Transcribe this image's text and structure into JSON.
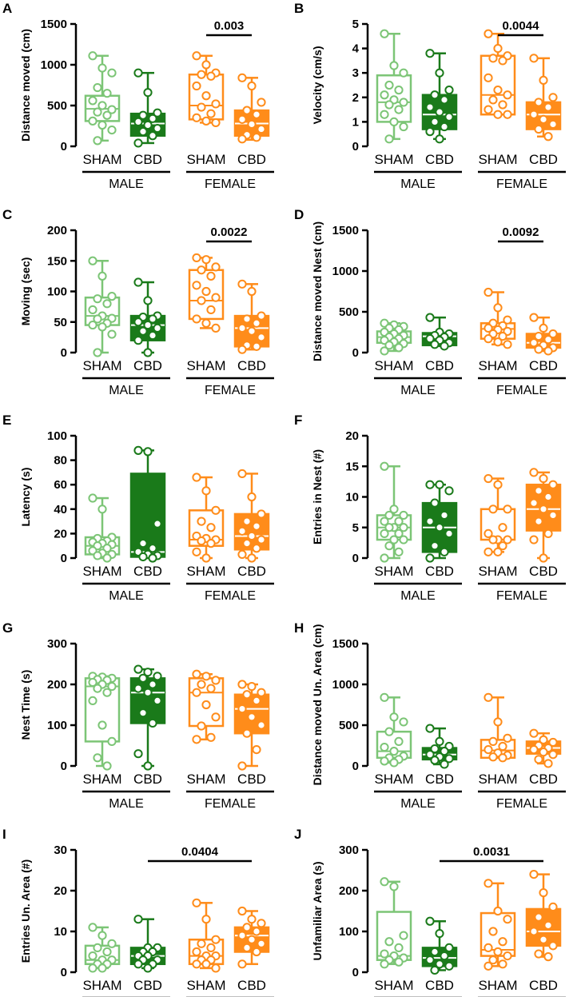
{
  "colors": {
    "sham_male": "#7cc576",
    "cbd_male": "#1a7a1a",
    "female": "#ff8c1a"
  },
  "groups": [
    "SHAM",
    "CBD",
    "SHAM",
    "CBD"
  ],
  "sex_labels": [
    "MALE",
    "FEMALE"
  ],
  "chart_data": [
    {
      "type": "box",
      "letter": "A",
      "ylabel": "Distance moved (cm)",
      "ylim": [
        0,
        1500
      ],
      "ticks": [
        0,
        500,
        1000,
        1500
      ],
      "boxes": [
        {
          "min": 70,
          "q1": 310,
          "med": 460,
          "q3": 620,
          "max": 1110
        },
        {
          "min": 40,
          "q1": 130,
          "med": 280,
          "q3": 400,
          "max": 900
        },
        {
          "min": 290,
          "q1": 330,
          "med": 500,
          "q3": 880,
          "max": 1110
        },
        {
          "min": 80,
          "q1": 130,
          "med": 280,
          "q3": 440,
          "max": 840
        }
      ],
      "points": [
        [
          1110,
          960,
          900,
          720,
          650,
          560,
          500,
          450,
          420,
          380,
          310,
          260,
          200,
          70
        ],
        [
          900,
          660,
          410,
          380,
          340,
          300,
          260,
          220,
          180,
          130,
          40
        ],
        [
          1110,
          1000,
          900,
          880,
          860,
          740,
          620,
          520,
          480,
          400,
          350,
          310,
          290
        ],
        [
          840,
          740,
          540,
          440,
          390,
          330,
          270,
          210,
          140,
          110,
          90
        ]
      ],
      "sig": {
        "label": "0.003",
        "from": 2,
        "to": 3
      }
    },
    {
      "type": "box",
      "letter": "B",
      "ylabel": "Velocity (cm/s)",
      "ylim": [
        0,
        5
      ],
      "ticks": [
        0,
        1,
        2,
        3,
        4,
        5
      ],
      "boxes": [
        {
          "min": 0.3,
          "q1": 1.0,
          "med": 1.8,
          "q3": 2.9,
          "max": 4.6
        },
        {
          "min": 0.3,
          "q1": 0.7,
          "med": 1.3,
          "q3": 2.1,
          "max": 3.8
        },
        {
          "min": 1.3,
          "q1": 1.3,
          "med": 2.1,
          "q3": 3.7,
          "max": 4.6
        },
        {
          "min": 0.4,
          "q1": 0.7,
          "med": 1.3,
          "q3": 1.8,
          "max": 3.6
        }
      ],
      "points": [
        [
          4.6,
          3.3,
          3.0,
          2.5,
          2.3,
          2.1,
          1.9,
          1.8,
          1.7,
          1.5,
          1.3,
          1.0,
          0.8,
          0.3
        ],
        [
          3.8,
          3.0,
          2.3,
          2.1,
          1.9,
          1.6,
          1.4,
          1.2,
          1.0,
          0.8,
          0.6,
          0.3
        ],
        [
          4.6,
          4.0,
          3.7,
          3.6,
          3.5,
          2.8,
          2.3,
          2.1,
          1.9,
          1.7,
          1.5,
          1.3,
          1.3
        ],
        [
          3.6,
          2.7,
          2.0,
          1.8,
          1.6,
          1.3,
          1.1,
          0.9,
          0.7,
          0.4
        ]
      ],
      "sig": {
        "label": "0.0044",
        "from": 2,
        "to": 3
      }
    },
    {
      "type": "box",
      "letter": "C",
      "ylabel": "Moving (sec)",
      "ylim": [
        0,
        200
      ],
      "ticks": [
        0,
        50,
        100,
        150,
        200
      ],
      "boxes": [
        {
          "min": 0,
          "q1": 45,
          "med": 60,
          "q3": 90,
          "max": 150
        },
        {
          "min": 0,
          "q1": 20,
          "med": 45,
          "q3": 60,
          "max": 115
        },
        {
          "min": 40,
          "q1": 55,
          "med": 85,
          "q3": 135,
          "max": 155
        },
        {
          "min": 5,
          "q1": 10,
          "med": 40,
          "q3": 60,
          "max": 112
        }
      ],
      "points": [
        [
          150,
          125,
          92,
          88,
          80,
          70,
          60,
          56,
          55,
          48,
          45,
          42,
          30,
          0
        ],
        [
          115,
          85,
          60,
          58,
          55,
          50,
          45,
          40,
          35,
          28,
          20,
          0
        ],
        [
          155,
          152,
          140,
          135,
          125,
          110,
          100,
          90,
          85,
          70,
          55,
          48,
          40
        ],
        [
          112,
          100,
          60,
          55,
          48,
          40,
          35,
          25,
          12,
          10,
          5
        ]
      ],
      "sig": {
        "label": "0.0022",
        "from": 2,
        "to": 3
      }
    },
    {
      "type": "box",
      "letter": "D",
      "ylabel": "Distance moved  Nest (cm)",
      "ylim": [
        0,
        1500
      ],
      "ticks": [
        0,
        500,
        1000,
        1500
      ],
      "boxes": [
        {
          "min": 20,
          "q1": 120,
          "med": 190,
          "q3": 260,
          "max": 360
        },
        {
          "min": 80,
          "q1": 90,
          "med": 200,
          "q3": 240,
          "max": 430
        },
        {
          "min": 100,
          "q1": 170,
          "med": 290,
          "q3": 360,
          "max": 740
        },
        {
          "min": 20,
          "q1": 60,
          "med": 120,
          "q3": 230,
          "max": 430
        }
      ],
      "points": [
        [
          360,
          340,
          320,
          300,
          280,
          250,
          230,
          210,
          190,
          170,
          150,
          130,
          110,
          90,
          60,
          20
        ],
        [
          430,
          250,
          230,
          210,
          190,
          170,
          150,
          120,
          100,
          80
        ],
        [
          740,
          550,
          400,
          360,
          330,
          300,
          280,
          260,
          230,
          200,
          170,
          130,
          100
        ],
        [
          430,
          300,
          230,
          200,
          160,
          120,
          90,
          60,
          40,
          20
        ]
      ],
      "sig": {
        "label": "0.0092",
        "from": 2,
        "to": 3
      }
    },
    {
      "type": "box",
      "letter": "E",
      "ylabel": "Latency (s)",
      "ylim": [
        0,
        100
      ],
      "ticks": [
        0,
        20,
        40,
        60,
        80,
        100
      ],
      "boxes": [
        {
          "min": 0,
          "q1": 3,
          "med": 10,
          "q3": 17,
          "max": 49
        },
        {
          "min": 0,
          "q1": 1,
          "med": 5,
          "q3": 69,
          "max": 88
        },
        {
          "min": 0,
          "q1": 10,
          "med": 15,
          "q3": 39,
          "max": 66
        },
        {
          "min": 0,
          "q1": 7,
          "med": 18,
          "q3": 36,
          "max": 69
        }
      ],
      "points": [
        [
          49,
          40,
          17,
          16,
          14,
          13,
          12,
          11,
          10,
          8,
          6,
          4,
          3,
          2,
          0
        ],
        [
          88,
          87,
          28,
          12,
          8,
          5,
          3,
          2,
          1,
          0
        ],
        [
          66,
          55,
          39,
          30,
          25,
          18,
          16,
          15,
          14,
          12,
          5,
          0
        ],
        [
          69,
          50,
          36,
          30,
          26,
          22,
          18,
          15,
          12,
          8,
          3,
          0
        ]
      ],
      "sig": null
    },
    {
      "type": "box",
      "letter": "F",
      "ylabel": "Entries in Nest (#)",
      "ylim": [
        0,
        20
      ],
      "ticks": [
        0,
        5,
        10,
        15,
        20
      ],
      "boxes": [
        {
          "min": 0,
          "q1": 3,
          "med": 5,
          "q3": 7,
          "max": 15
        },
        {
          "min": 0,
          "q1": 1,
          "med": 5,
          "q3": 9,
          "max": 12
        },
        {
          "min": 1,
          "q1": 3,
          "med": 3,
          "q3": 8,
          "max": 13
        },
        {
          "min": 0,
          "q1": 4.5,
          "med": 8,
          "q3": 12,
          "max": 14
        }
      ],
      "points": [
        [
          15,
          8,
          7,
          7,
          6,
          6,
          5,
          5,
          5,
          4,
          4,
          3,
          3,
          2,
          1,
          0
        ],
        [
          12,
          12,
          11,
          9,
          7,
          6,
          5,
          4,
          2,
          1,
          0
        ],
        [
          13,
          12,
          8,
          8,
          5,
          4,
          3,
          3,
          3,
          2,
          1,
          1
        ],
        [
          14,
          13,
          12,
          11,
          10,
          9,
          8,
          7,
          6,
          4,
          3,
          0
        ]
      ],
      "sig": null
    },
    {
      "type": "box",
      "letter": "G",
      "ylabel": "Nest Time (s)",
      "ylim": [
        0,
        300
      ],
      "ticks": [
        0,
        100,
        200,
        300
      ],
      "boxes": [
        {
          "min": 0,
          "q1": 60,
          "med": 195,
          "q3": 215,
          "max": 220
        },
        {
          "min": 0,
          "q1": 105,
          "med": 180,
          "q3": 215,
          "max": 237
        },
        {
          "min": 65,
          "q1": 98,
          "med": 180,
          "q3": 215,
          "max": 225
        },
        {
          "min": 0,
          "q1": 80,
          "med": 140,
          "q3": 175,
          "max": 200
        }
      ],
      "points": [
        [
          220,
          218,
          215,
          212,
          210,
          205,
          200,
          195,
          190,
          180,
          160,
          100,
          60,
          20,
          0
        ],
        [
          237,
          230,
          220,
          215,
          200,
          190,
          180,
          160,
          130,
          105,
          30,
          0
        ],
        [
          225,
          220,
          210,
          200,
          190,
          180,
          150,
          120,
          98,
          70,
          65
        ],
        [
          200,
          195,
          180,
          175,
          160,
          140,
          120,
          100,
          80,
          40,
          0
        ]
      ],
      "sig": null
    },
    {
      "type": "box",
      "letter": "H",
      "ylabel": "Distance moved Un. Area (cm)",
      "ylim": [
        0,
        1500
      ],
      "ticks": [
        0,
        500,
        1000,
        1500
      ],
      "boxes": [
        {
          "min": 40,
          "q1": 100,
          "med": 180,
          "q3": 420,
          "max": 840
        },
        {
          "min": 20,
          "q1": 80,
          "med": 140,
          "q3": 220,
          "max": 460
        },
        {
          "min": 100,
          "q1": 100,
          "med": 190,
          "q3": 320,
          "max": 840
        },
        {
          "min": 30,
          "q1": 150,
          "med": 220,
          "q3": 300,
          "max": 400
        }
      ],
      "points": [
        [
          840,
          600,
          540,
          420,
          300,
          230,
          180,
          120,
          100,
          80,
          60,
          40
        ],
        [
          460,
          300,
          240,
          210,
          180,
          140,
          110,
          90,
          70,
          20
        ],
        [
          840,
          540,
          340,
          300,
          240,
          200,
          160,
          130,
          110,
          100
        ],
        [
          400,
          320,
          290,
          250,
          220,
          200,
          170,
          140,
          80,
          30
        ]
      ],
      "sig": null
    },
    {
      "type": "box",
      "letter": "I",
      "ylabel": "Entries Un. Area (#)",
      "ylim": [
        0,
        30
      ],
      "ticks": [
        0,
        10,
        20,
        30
      ],
      "boxes": [
        {
          "min": 1,
          "q1": 2,
          "med": 3,
          "q3": 6.5,
          "max": 11
        },
        {
          "min": 1,
          "q1": 2,
          "med": 4,
          "q3": 6,
          "max": 13
        },
        {
          "min": 1,
          "q1": 2,
          "med": 4,
          "q3": 8,
          "max": 17
        },
        {
          "min": 2,
          "q1": 5,
          "med": 9,
          "q3": 11,
          "max": 15
        }
      ],
      "points": [
        [
          11,
          9,
          7,
          6,
          5,
          4,
          3,
          3,
          2,
          2,
          1,
          1
        ],
        [
          13,
          6,
          6,
          5,
          5,
          4,
          4,
          3,
          3,
          2,
          2,
          1
        ],
        [
          17,
          13,
          8,
          7,
          6,
          5,
          4,
          4,
          3,
          3,
          2,
          2,
          1
        ],
        [
          15,
          13,
          12,
          11,
          10,
          9,
          8,
          7,
          6,
          5,
          2
        ]
      ],
      "sig": {
        "label": "0.0404",
        "from": 1,
        "to": 3
      }
    },
    {
      "type": "box",
      "letter": "J",
      "ylabel": "Unfamiliar Area (s)",
      "ylim": [
        0,
        300
      ],
      "ticks": [
        0,
        100,
        200,
        300
      ],
      "boxes": [
        {
          "min": 20,
          "q1": 30,
          "med": 40,
          "q3": 148,
          "max": 222
        },
        {
          "min": 5,
          "q1": 15,
          "med": 35,
          "q3": 60,
          "max": 125
        },
        {
          "min": 15,
          "q1": 40,
          "med": 55,
          "q3": 145,
          "max": 218
        },
        {
          "min": 38,
          "q1": 65,
          "med": 100,
          "q3": 155,
          "max": 240
        }
      ],
      "points": [
        [
          222,
          210,
          90,
          75,
          60,
          45,
          40,
          35,
          30,
          25,
          20
        ],
        [
          125,
          95,
          60,
          50,
          40,
          30,
          20,
          15,
          5
        ],
        [
          218,
          150,
          130,
          100,
          75,
          60,
          50,
          40,
          30,
          20,
          15
        ],
        [
          240,
          195,
          160,
          135,
          115,
          100,
          80,
          65,
          45,
          38
        ]
      ],
      "sig": {
        "label": "0.0031",
        "from": 1,
        "to": 3
      }
    }
  ]
}
